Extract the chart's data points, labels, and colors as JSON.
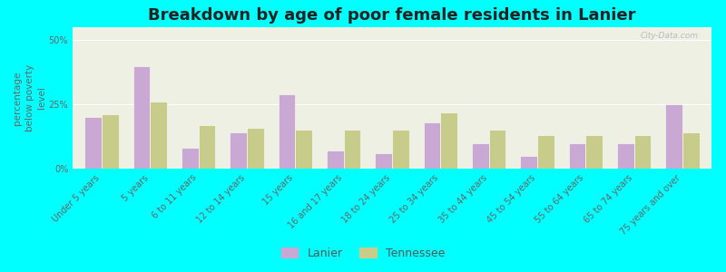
{
  "title": "Breakdown by age of poor female residents in Lanier",
  "ylabel": "percentage\nbelow poverty\nlevel",
  "background_color": "#00FFFF",
  "plot_bg_color": "#edf0e2",
  "categories": [
    "Under 5 years",
    "5 years",
    "6 to 11 years",
    "12 to 14 years",
    "15 years",
    "16 and 17 years",
    "18 to 24 years",
    "25 to 34 years",
    "35 to 44 years",
    "45 to 54 years",
    "55 to 64 years",
    "65 to 74 years",
    "75 years and over"
  ],
  "lanier_values": [
    20,
    40,
    8,
    14,
    29,
    7,
    6,
    18,
    10,
    5,
    10,
    10,
    25
  ],
  "tennessee_values": [
    21,
    26,
    17,
    16,
    15,
    15,
    15,
    22,
    15,
    13,
    13,
    13,
    14
  ],
  "lanier_color": "#c9a8d4",
  "tennessee_color": "#c8cc8a",
  "ylim": [
    0,
    55
  ],
  "yticks": [
    0,
    25,
    50
  ],
  "ytick_labels": [
    "0%",
    "25%",
    "50%"
  ],
  "bar_width": 0.35,
  "legend_lanier": "Lanier",
  "legend_tennessee": "Tennessee",
  "title_fontsize": 13,
  "axis_label_fontsize": 7.5,
  "tick_fontsize": 7,
  "watermark": "City-Data.com"
}
